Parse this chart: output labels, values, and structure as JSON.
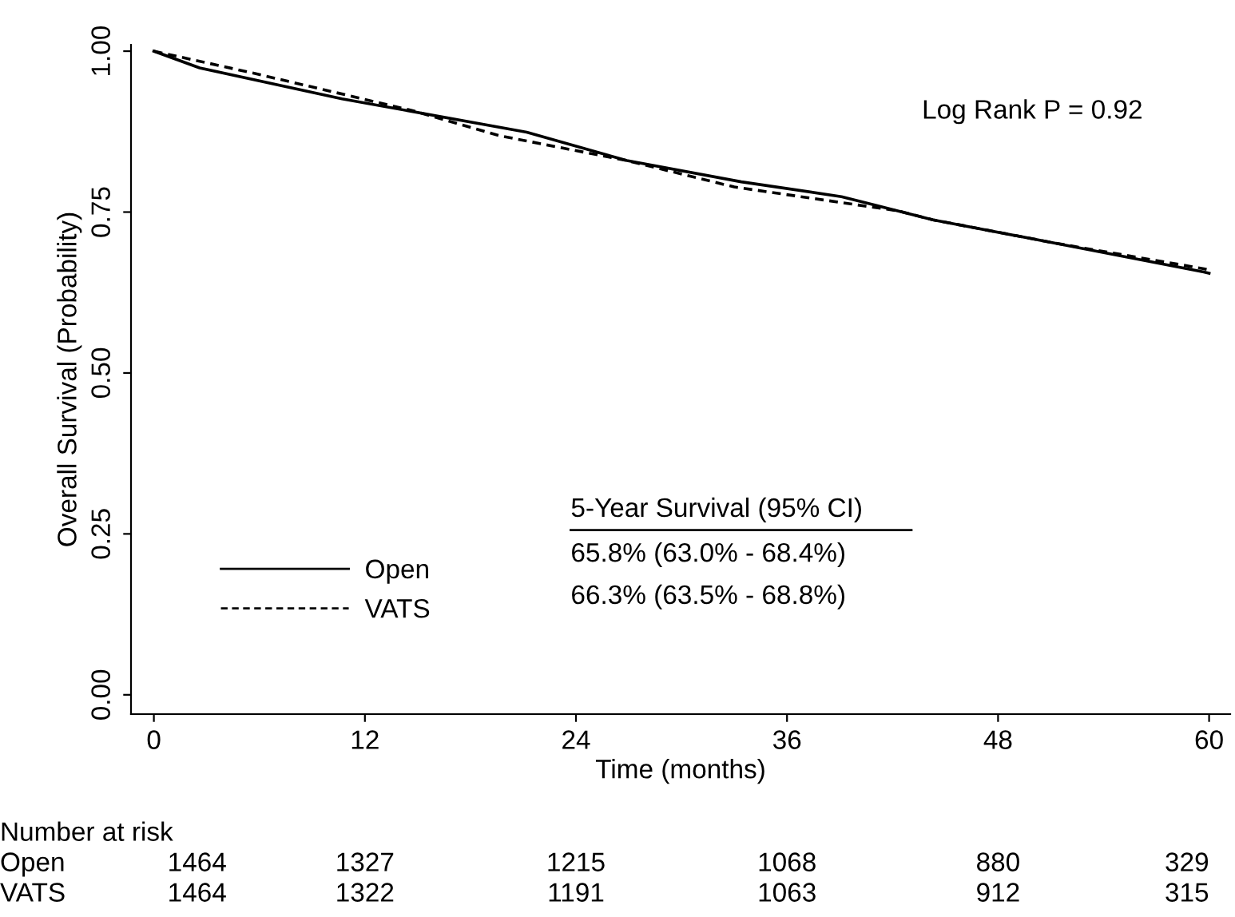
{
  "chart_data": {
    "type": "line",
    "xlabel": "Time (months)",
    "ylabel": "Overall Survival (Probability)",
    "legend_title": "5-Year Survival (95% CI)",
    "series": [
      {
        "name": "Open",
        "color": "#000000",
        "line_style": "solid",
        "x": [
          0,
          2.6,
          10.7,
          21.2,
          26.9,
          33.4,
          39.1,
          44.3,
          51.2,
          59.7,
          60
        ],
        "values": [
          1.0,
          0.974,
          0.926,
          0.874,
          0.83,
          0.797,
          0.774,
          0.738,
          0.702,
          0.657,
          0.655
        ]
      },
      {
        "name": "VATS",
        "color": "#000000",
        "line_style": "dashed",
        "x": [
          0,
          5.8,
          14.8,
          19.6,
          26.9,
          33,
          42.3,
          44.3,
          51.2,
          59.7,
          60
        ],
        "values": [
          1.0,
          0.965,
          0.907,
          0.869,
          0.83,
          0.789,
          0.752,
          0.738,
          0.702,
          0.662,
          0.66
        ]
      }
    ],
    "xlim": [
      -1.3,
      61.2
    ],
    "xticks": [
      0,
      12,
      24,
      36,
      48,
      60
    ],
    "ylim": [
      -0.03,
      1.01
    ],
    "yticks": [
      {
        "value": 0,
        "label": "0.00"
      },
      {
        "value": 0.25,
        "label": "0.25"
      },
      {
        "value": 0.5,
        "label": "0.50"
      },
      {
        "value": 0.75,
        "label": "0.75"
      },
      {
        "value": 1,
        "label": "1.00"
      }
    ],
    "grid": false,
    "legend": "bottom left",
    "annotations": [
      "Log Rank P = 0.92",
      "65.8% (63.0% - 68.4%)",
      "66.3% (63.5% - 68.8%)",
      "Number at risk",
      "Open",
      "1464",
      "1327",
      "1215",
      "1068",
      "880",
      "329",
      "VATS",
      "1464",
      "1322",
      "1191",
      "1063",
      "912",
      "315"
    ]
  }
}
